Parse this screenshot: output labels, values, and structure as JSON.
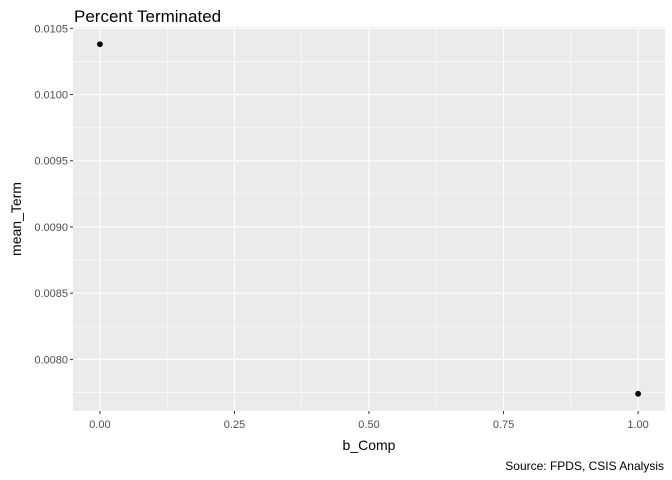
{
  "chart_data": {
    "type": "scatter",
    "title": "Percent Terminated",
    "xlabel": "b_Comp",
    "ylabel": "mean_Term",
    "caption": "Source: FPDS, CSIS Analysis",
    "points": [
      {
        "x": 0,
        "y": 0.01038
      },
      {
        "x": 1,
        "y": 0.00774
      }
    ],
    "xlim": [
      -0.05,
      1.05
    ],
    "ylim": [
      0.00761,
      0.01051
    ],
    "x_ticks": [
      0,
      0.25,
      0.5,
      0.75,
      1
    ],
    "x_tick_labels": [
      "0.00",
      "0.25",
      "0.50",
      "0.75",
      "1.00"
    ],
    "y_ticks": [
      0.008,
      0.0085,
      0.009,
      0.0095,
      0.01,
      0.0105
    ],
    "y_tick_labels": [
      "0.0080",
      "0.0085",
      "0.0090",
      "0.0095",
      "0.0100",
      "0.0105"
    ],
    "grid": true,
    "colors": {
      "panel": "#ebebeb",
      "grid": "#ffffff",
      "point": "#000000",
      "tick": "#333333"
    }
  }
}
